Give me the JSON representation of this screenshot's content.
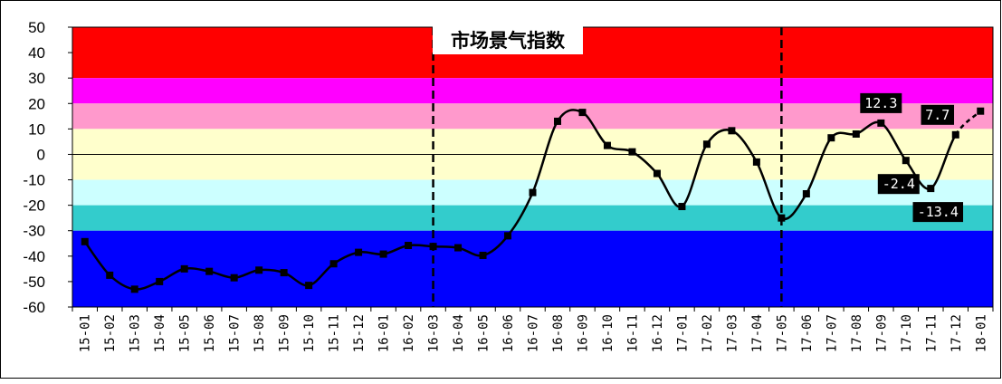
{
  "chart_data": {
    "type": "line",
    "title": "市场景气指数",
    "xlabel": "",
    "ylabel": "",
    "ylim": [
      -60,
      50
    ],
    "yticks": [
      "50",
      "40",
      "30",
      "20",
      "10",
      "0",
      "-10",
      "-20",
      "-30",
      "-40",
      "-50",
      "-60"
    ],
    "categories": [
      "15-01",
      "15-02",
      "15-03",
      "15-04",
      "15-05",
      "15-06",
      "15-07",
      "15-08",
      "15-09",
      "15-10",
      "15-11",
      "15-12",
      "16-01",
      "16-02",
      "16-03",
      "16-04",
      "16-05",
      "16-06",
      "16-07",
      "16-08",
      "16-09",
      "16-10",
      "16-11",
      "16-12",
      "17-01",
      "17-02",
      "17-03",
      "17-04",
      "17-05",
      "17-06",
      "17-07",
      "17-08",
      "17-09",
      "17-10",
      "17-11",
      "17-12",
      "18-01"
    ],
    "values": [
      -34.3,
      -47.5,
      -53,
      -50,
      -45,
      -46,
      -48.5,
      -45.5,
      -46.5,
      -51.5,
      -43,
      -38.5,
      -39.2,
      -35.8,
      -36.2,
      -36.7,
      -39.7,
      -32,
      -15,
      13,
      16.5,
      3.5,
      1,
      -7.5,
      -20.5,
      4,
      9.3,
      -3,
      -25,
      -15.5,
      6.5,
      8,
      12.3,
      -2.4,
      -13.4,
      7.7,
      17
    ],
    "projected_from_index": 35,
    "bands": [
      {
        "from": 30,
        "to": 50,
        "color": "#ff0000"
      },
      {
        "from": 20,
        "to": 30,
        "color": "#ff00ff"
      },
      {
        "from": 10,
        "to": 20,
        "color": "#ff99cc"
      },
      {
        "from": -10,
        "to": 10,
        "color": "#ffffcc"
      },
      {
        "from": -20,
        "to": -10,
        "color": "#ccffff"
      },
      {
        "from": -30,
        "to": -20,
        "color": "#33cccc"
      },
      {
        "from": -60,
        "to": -30,
        "color": "#0000ff"
      }
    ],
    "dividers": [
      "16-03",
      "17-05"
    ],
    "annotations": [
      {
        "category": "17-09",
        "text": "12.3"
      },
      {
        "category": "17-10",
        "text": "-2.4"
      },
      {
        "category": "17-11",
        "text": "-13.4"
      },
      {
        "category": "17-12",
        "text": "7.7"
      }
    ],
    "line_color": "#000000",
    "zero_line": true
  }
}
